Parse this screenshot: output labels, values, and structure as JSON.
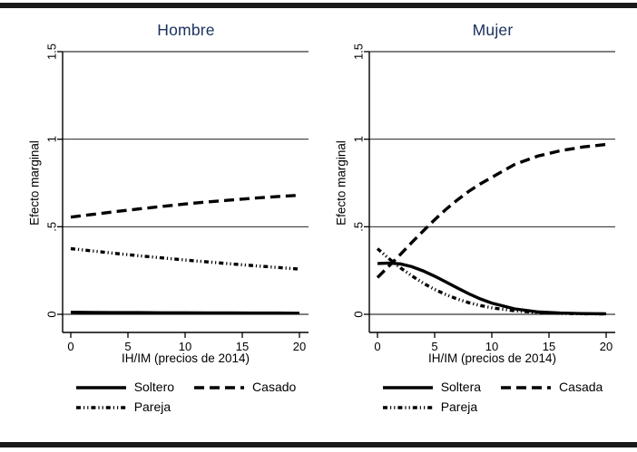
{
  "figure": {
    "background": "#ffffff",
    "rule_color": "#1a1a1a",
    "line_color": "#000000",
    "grid_color": "#000000",
    "axis_color": "#000000",
    "text_color": "#000000",
    "title_color": "#1b3160"
  },
  "chart_data": [
    {
      "type": "line",
      "title": "Hombre",
      "xlabel": "IH/IM (precios de 2014)",
      "ylabel": "Efecto marginal",
      "xlim": [
        0,
        20
      ],
      "ylim": [
        0,
        1.5
      ],
      "grid": true,
      "legend_position": "below",
      "xticks": [
        0,
        5,
        10,
        15,
        20
      ],
      "yticks": [
        {
          "value": 0,
          "label": "0"
        },
        {
          "value": 0.5,
          "label": ".5"
        },
        {
          "value": 1,
          "label": "1"
        },
        {
          "value": 1.5,
          "label": "1.5"
        }
      ],
      "series": [
        {
          "name": "Soltero",
          "style": "solid",
          "x": [
            0,
            2,
            4,
            6,
            8,
            10,
            12,
            14,
            16,
            18,
            20
          ],
          "values": [
            0.012,
            0.011,
            0.01,
            0.01,
            0.009,
            0.009,
            0.008,
            0.008,
            0.007,
            0.007,
            0.006
          ]
        },
        {
          "name": "Casado",
          "style": "dash",
          "x": [
            0,
            2,
            4,
            6,
            8,
            10,
            12,
            14,
            16,
            18,
            20
          ],
          "values": [
            0.555,
            0.571,
            0.587,
            0.602,
            0.616,
            0.63,
            0.642,
            0.653,
            0.663,
            0.672,
            0.68
          ]
        },
        {
          "name": "Pareja",
          "style": "dash-dot-dot",
          "x": [
            0,
            2,
            4,
            6,
            8,
            10,
            12,
            14,
            16,
            18,
            20
          ],
          "values": [
            0.375,
            0.361,
            0.347,
            0.334,
            0.322,
            0.31,
            0.299,
            0.288,
            0.278,
            0.268,
            0.258
          ]
        }
      ]
    },
    {
      "type": "line",
      "title": "Mujer",
      "xlabel": "IH/IM (precios de 2014)",
      "ylabel": "Efecto marginal",
      "xlim": [
        0,
        20
      ],
      "ylim": [
        0,
        1.5
      ],
      "grid": true,
      "legend_position": "below",
      "xticks": [
        0,
        5,
        10,
        15,
        20
      ],
      "yticks": [
        {
          "value": 0,
          "label": "0"
        },
        {
          "value": 0.5,
          "label": ".5"
        },
        {
          "value": 1,
          "label": "1"
        },
        {
          "value": 1.5,
          "label": "1.5"
        }
      ],
      "series": [
        {
          "name": "Soltera",
          "style": "solid",
          "x": [
            0,
            1,
            2,
            3,
            4,
            5,
            6,
            7,
            8,
            9,
            10,
            12,
            14,
            16,
            18,
            20
          ],
          "values": [
            0.29,
            0.293,
            0.288,
            0.272,
            0.248,
            0.218,
            0.184,
            0.15,
            0.117,
            0.088,
            0.064,
            0.031,
            0.014,
            0.007,
            0.004,
            0.003
          ]
        },
        {
          "name": "Casada",
          "style": "dash",
          "x": [
            0,
            1,
            2,
            3,
            4,
            5,
            6,
            7,
            8,
            9,
            10,
            12,
            14,
            16,
            18,
            20
          ],
          "values": [
            0.21,
            0.275,
            0.342,
            0.41,
            0.476,
            0.54,
            0.6,
            0.654,
            0.703,
            0.745,
            0.782,
            0.856,
            0.903,
            0.934,
            0.956,
            0.97
          ]
        },
        {
          "name": "Pareja",
          "style": "dash-dot-dot",
          "x": [
            0,
            1,
            2,
            3,
            4,
            5,
            6,
            7,
            8,
            9,
            10,
            12,
            14,
            16,
            18,
            20
          ],
          "values": [
            0.375,
            0.318,
            0.266,
            0.22,
            0.178,
            0.142,
            0.112,
            0.087,
            0.066,
            0.05,
            0.037,
            0.02,
            0.01,
            0.005,
            0.003,
            0.002
          ]
        }
      ]
    }
  ]
}
